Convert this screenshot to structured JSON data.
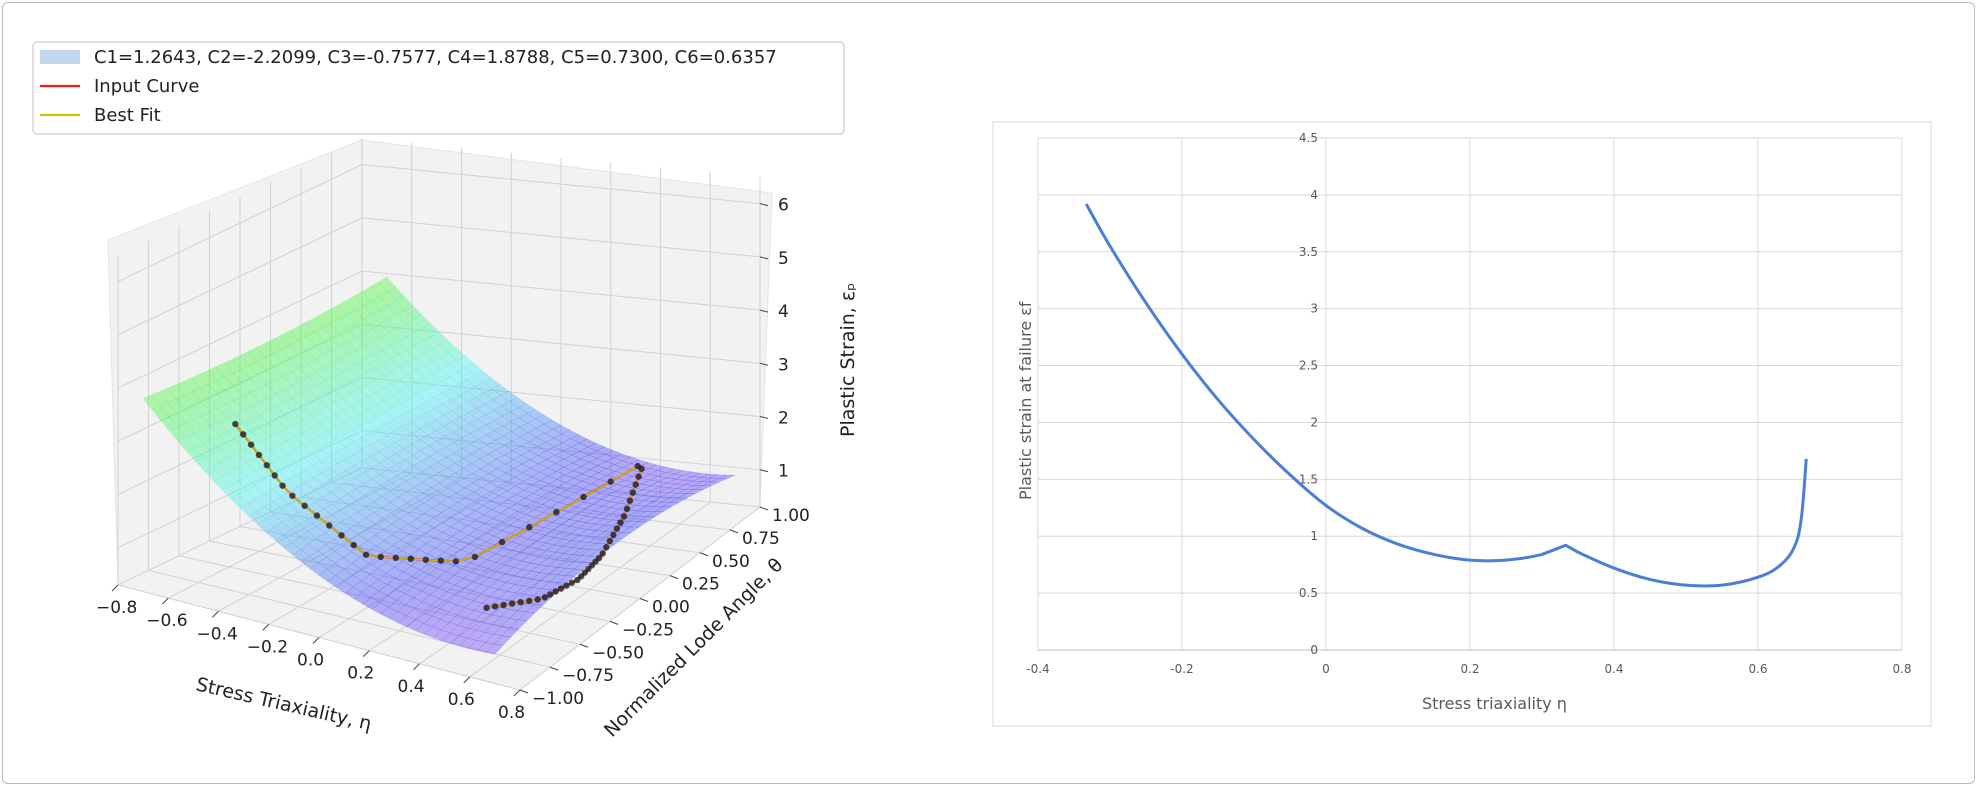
{
  "left_chart": {
    "legend": [
      {
        "label": "C1=1.2643, C2=-2.2099, C3=-0.7577, C4=1.8788, C5=0.7300, C6=0.6357",
        "kind": "patch",
        "color": "#a8c8e8"
      },
      {
        "label": "Input Curve",
        "kind": "line",
        "color": "#e8201e"
      },
      {
        "label": "Best Fit",
        "kind": "line",
        "color": "#c8c000"
      }
    ],
    "xlabel": "Stress Triaxiality, η",
    "ylabel": "Normalized Lode Angle, θ",
    "zlabel": "Plastic Strain, εₚ",
    "xticks": [
      "−0.8",
      "−0.6",
      "−0.4",
      "−0.2",
      "0.0",
      "0.2",
      "0.4",
      "0.6",
      "0.8"
    ],
    "yticks": [
      "−1.00",
      "−0.75",
      "−0.50",
      "−0.25",
      "0.00",
      "0.25",
      "0.50",
      "0.75",
      "1.00"
    ],
    "zticks": [
      "1",
      "2",
      "3",
      "4",
      "5",
      "6"
    ]
  },
  "right_chart": {
    "xlabel": "Stress triaxiality  η",
    "ylabel": "Plastic strain at failure εf",
    "xticks": [
      "-0.4",
      "-0.2",
      "0",
      "0.2",
      "0.4",
      "0.6",
      "0.8"
    ],
    "yticks": [
      "0",
      "0.5",
      "1",
      "1.5",
      "2",
      "2.5",
      "3",
      "3.5",
      "4",
      "4.5"
    ],
    "line_color": "#4a7fd4"
  },
  "chart_data": [
    {
      "type": "surface",
      "xlabel": "Stress Triaxiality, η",
      "ylabel": "Normalized Lode Angle, θ",
      "zlabel": "Plastic Strain, εₚ",
      "xlim": [
        -0.8,
        0.8
      ],
      "ylim": [
        -1.0,
        1.0
      ],
      "zlim": [
        0.3,
        6.5
      ],
      "series": [
        {
          "name": "C1=1.2643, C2=-2.2099, C3=-0.7577, C4=1.8788, C5=0.7300, C6=0.6357"
        },
        {
          "name": "Input Curve",
          "x": [
            -0.333,
            -0.2,
            0,
            0.2,
            0.333,
            0.45,
            0.55,
            0.6,
            0.65,
            0.667
          ],
          "y": [
            -1.0,
            -0.85,
            -0.6,
            -0.2,
            1.0,
            0.6,
            0.2,
            -0.1,
            -0.5,
            -1.0
          ],
          "z": [
            3.9,
            2.6,
            1.27,
            0.78,
            0.92,
            0.62,
            0.57,
            0.65,
            1.0,
            1.68
          ]
        },
        {
          "name": "Best Fit",
          "x": [
            -0.333,
            -0.2,
            0,
            0.2,
            0.333,
            0.45,
            0.55,
            0.6,
            0.65,
            0.667
          ],
          "y": [
            -1.0,
            -0.85,
            -0.6,
            -0.2,
            1.0,
            0.6,
            0.2,
            -0.1,
            -0.5,
            -1.0
          ],
          "z": [
            3.9,
            2.6,
            1.27,
            0.78,
            0.92,
            0.62,
            0.57,
            0.65,
            1.0,
            1.68
          ]
        }
      ]
    },
    {
      "type": "line",
      "xlabel": "Stress triaxiality  η",
      "ylabel": "Plastic strain at failure εf",
      "xlim": [
        -0.4,
        0.8
      ],
      "ylim": [
        0,
        4.5
      ],
      "x": [
        -0.333,
        -0.3,
        -0.25,
        -0.2,
        -0.15,
        -0.1,
        -0.05,
        0.0,
        0.05,
        0.1,
        0.15,
        0.2,
        0.25,
        0.3,
        0.333,
        0.35,
        0.4,
        0.45,
        0.5,
        0.55,
        0.6,
        0.63,
        0.65,
        0.66,
        0.667
      ],
      "y": [
        3.92,
        3.55,
        3.05,
        2.6,
        2.2,
        1.85,
        1.54,
        1.27,
        1.07,
        0.93,
        0.84,
        0.79,
        0.79,
        0.84,
        0.92,
        0.86,
        0.72,
        0.62,
        0.57,
        0.57,
        0.64,
        0.74,
        0.9,
        1.15,
        1.68
      ]
    }
  ]
}
